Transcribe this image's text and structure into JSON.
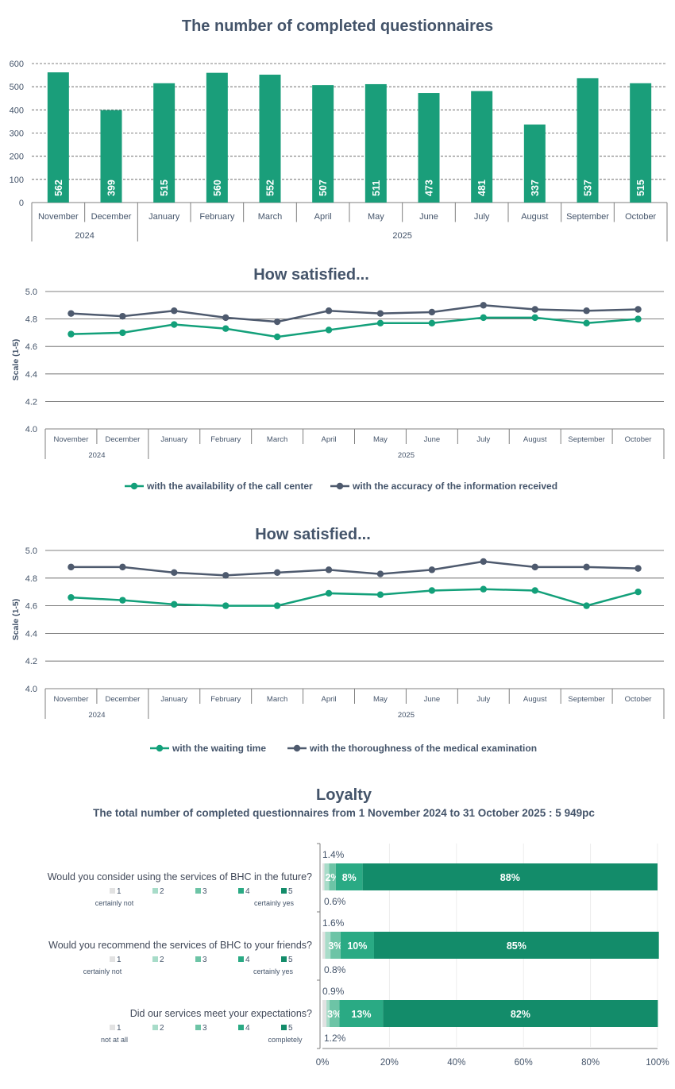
{
  "months": [
    "November",
    "December",
    "January",
    "February",
    "March",
    "April",
    "May",
    "June",
    "July",
    "August",
    "September",
    "October"
  ],
  "year_groups": [
    {
      "label": "2024",
      "span": 2
    },
    {
      "label": "2025",
      "span": 10
    }
  ],
  "chart_data": [
    {
      "type": "bar",
      "title": "The number of completed questionnaires",
      "categories": [
        "November",
        "December",
        "January",
        "February",
        "March",
        "April",
        "May",
        "June",
        "July",
        "August",
        "September",
        "October"
      ],
      "values": [
        562,
        399,
        515,
        560,
        552,
        507,
        511,
        473,
        481,
        337,
        537,
        515
      ],
      "ylim": [
        0,
        600
      ],
      "yticks": [
        0,
        100,
        200,
        300,
        400,
        500,
        600
      ],
      "color": "#1A9E7A"
    },
    {
      "type": "line",
      "title": "How satisfied...",
      "ylabel": "Scale (1-5)",
      "ylim": [
        4.0,
        5.0
      ],
      "yticks": [
        "4.0",
        "4.2",
        "4.4",
        "4.6",
        "4.8",
        "5.0"
      ],
      "categories": [
        "November",
        "December",
        "January",
        "February",
        "March",
        "April",
        "May",
        "June",
        "July",
        "August",
        "September",
        "October"
      ],
      "series": [
        {
          "name": "with the availability of the call center",
          "color": "#13A07A",
          "values": [
            4.69,
            4.7,
            4.76,
            4.73,
            4.67,
            4.72,
            4.77,
            4.77,
            4.81,
            4.81,
            4.77,
            4.8
          ]
        },
        {
          "name": "with the accuracy of the information received",
          "color": "#4E5A6E",
          "values": [
            4.84,
            4.82,
            4.86,
            4.81,
            4.78,
            4.86,
            4.84,
            4.85,
            4.9,
            4.87,
            4.86,
            4.87
          ]
        }
      ]
    },
    {
      "type": "line",
      "title": "How satisfied...",
      "ylabel": "Scale (1-5)",
      "ylim": [
        4.0,
        5.0
      ],
      "yticks": [
        "4.0",
        "4.2",
        "4.4",
        "4.6",
        "4.8",
        "5.0"
      ],
      "categories": [
        "November",
        "December",
        "January",
        "February",
        "March",
        "April",
        "May",
        "June",
        "July",
        "August",
        "September",
        "October"
      ],
      "series": [
        {
          "name": "with the waiting time",
          "color": "#13A07A",
          "values": [
            4.66,
            4.64,
            4.61,
            4.6,
            4.6,
            4.69,
            4.68,
            4.71,
            4.72,
            4.71,
            4.6,
            4.7
          ]
        },
        {
          "name": "with the thoroughness of the medical examination",
          "color": "#4E5A6E",
          "values": [
            4.88,
            4.88,
            4.84,
            4.82,
            4.84,
            4.86,
            4.83,
            4.86,
            4.92,
            4.88,
            4.88,
            4.87
          ]
        }
      ]
    },
    {
      "type": "bar",
      "orientation": "horizontal-stacked-100",
      "title": "Loyalty",
      "subtitle": "The total number of completed questionnaires from 1 November 2024 to 31 October 2025 : 5 949pc",
      "xticks": [
        "0%",
        "20%",
        "40%",
        "60%",
        "80%",
        "100%"
      ],
      "segment_colors": [
        "#E2E2E2",
        "#A8DCC9",
        "#6DC4A6",
        "#2AAA84",
        "#138C6A"
      ],
      "questions": [
        {
          "text": "Would you consider using the services of BHC in the future?",
          "segments": [
            0.6,
            1.4,
            2,
            8,
            88
          ],
          "labels": [
            "0.6%",
            "1.4%",
            "2%",
            "8%",
            "88%"
          ],
          "legend_low": "certainly not",
          "legend_high": "certainly yes"
        },
        {
          "text": "Would you recommend the services of BHC to your friends?",
          "segments": [
            0.8,
            1.6,
            3,
            10,
            85
          ],
          "labels": [
            "0.8%",
            "1.6%",
            "3%",
            "10%",
            "85%"
          ],
          "legend_low": "certainly not",
          "legend_high": "certainly yes"
        },
        {
          "text": "Did our services meet your expectations?",
          "segments": [
            1.2,
            0.9,
            3,
            13,
            82
          ],
          "labels": [
            "1.2%",
            "0.9%",
            "3%",
            "13%",
            "82%"
          ],
          "legend_low": "not at all",
          "legend_high": "completely"
        }
      ],
      "legend_keys": [
        "1",
        "2",
        "3",
        "4",
        "5"
      ]
    }
  ]
}
